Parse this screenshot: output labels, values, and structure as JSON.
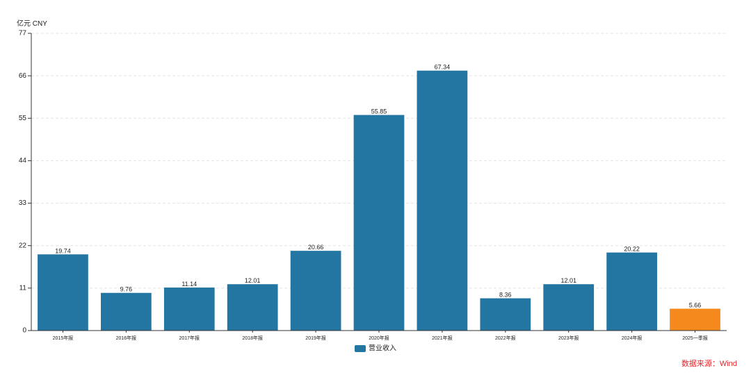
{
  "chart_data": {
    "type": "bar",
    "ylabel": "亿元 CNY",
    "ylim": [
      0,
      77
    ],
    "yticks": [
      0,
      11,
      22,
      33,
      44,
      55,
      66,
      77
    ],
    "grid": true,
    "legend": "bottom-center",
    "categories": [
      "2015年报",
      "2016年报",
      "2017年报",
      "2018年报",
      "2019年报",
      "2020年报",
      "2021年报",
      "2022年报",
      "2023年报",
      "2024年报",
      "2025一季报"
    ],
    "series": [
      {
        "name": "营业收入",
        "values": [
          19.74,
          9.76,
          11.14,
          12.01,
          20.66,
          55.85,
          67.34,
          8.36,
          12.01,
          20.22,
          5.66
        ]
      }
    ],
    "highlight_category": "2025一季报",
    "colors": {
      "bar": "#2376a2",
      "highlight": "#f5891d"
    }
  },
  "source": "数据来源：Wind"
}
